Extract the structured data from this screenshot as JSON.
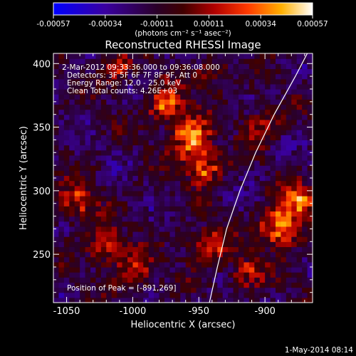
{
  "colorbar": {
    "tick_labels": [
      "-0.00057",
      "-0.00034",
      "-0.00011",
      "0.00011",
      "0.00034",
      "0.00057"
    ],
    "unit_label": "(photons cm⁻² s⁻¹ asec⁻²)"
  },
  "annotations": {
    "time": "2-Mar-2012 09:33:36.000 to 09:36:08.000",
    "detectors": "Detectors: 3F 5F 6F 7F 8F 9F, Att 0",
    "energy": "Energy Range: 12.0 - 25.0 keV",
    "clean": "Clean     Total counts: 4.26E+03",
    "peak": "Position of Peak = [-891,269]"
  },
  "timestamp": "1-May-2014 08:14",
  "chart_data": {
    "type": "heatmap",
    "title": "Reconstructed RHESSI Image",
    "xlabel": "Heliocentric X (arcsec)",
    "ylabel": "Heliocentric Y (arcsec)",
    "xlim": [
      -1060,
      -864
    ],
    "ylim": [
      212,
      408
    ],
    "x_ticks": [
      -1050,
      -1000,
      -950,
      -900
    ],
    "y_ticks": [
      250,
      300,
      350,
      400
    ],
    "x_tick_labels": [
      "-1050",
      "-1000",
      "-950",
      "-900"
    ],
    "y_tick_labels": [
      "250",
      "300",
      "350",
      "400"
    ],
    "value_range": [
      -0.00057,
      0.00057
    ],
    "colormap": [
      "#0000ff",
      "#2a0060",
      "#300020",
      "#8a0000",
      "#e02800",
      "#ff8a00",
      "#ffe000",
      "#ffffff"
    ],
    "limb_curve": [
      [
        -942,
        212
      ],
      [
        -936,
        240
      ],
      [
        -929,
        270
      ],
      [
        -919,
        300
      ],
      [
        -907,
        330
      ],
      [
        -893,
        360
      ],
      [
        -877,
        390
      ],
      [
        -868,
        408
      ]
    ],
    "sources": [
      {
        "x": -975,
        "y": 365,
        "peak": 0.00048
      },
      {
        "x": -958,
        "y": 340,
        "peak": 0.00052
      },
      {
        "x": -948,
        "y": 318,
        "peak": 0.00045
      },
      {
        "x": -945,
        "y": 255,
        "peak": 0.0004
      },
      {
        "x": -1045,
        "y": 290,
        "peak": 0.0004
      },
      {
        "x": -1022,
        "y": 255,
        "peak": 0.00034
      },
      {
        "x": -1000,
        "y": 235,
        "peak": 0.0003
      },
      {
        "x": -891,
        "y": 269,
        "peak": 0.00057
      },
      {
        "x": -878,
        "y": 290,
        "peak": 0.00046
      },
      {
        "x": -905,
        "y": 350,
        "peak": 0.0003
      },
      {
        "x": -1012,
        "y": 395,
        "peak": 0.00028
      },
      {
        "x": -915,
        "y": 235,
        "peak": 0.0003
      },
      {
        "x": -940,
        "y": 390,
        "peak": 0.00024
      }
    ]
  }
}
